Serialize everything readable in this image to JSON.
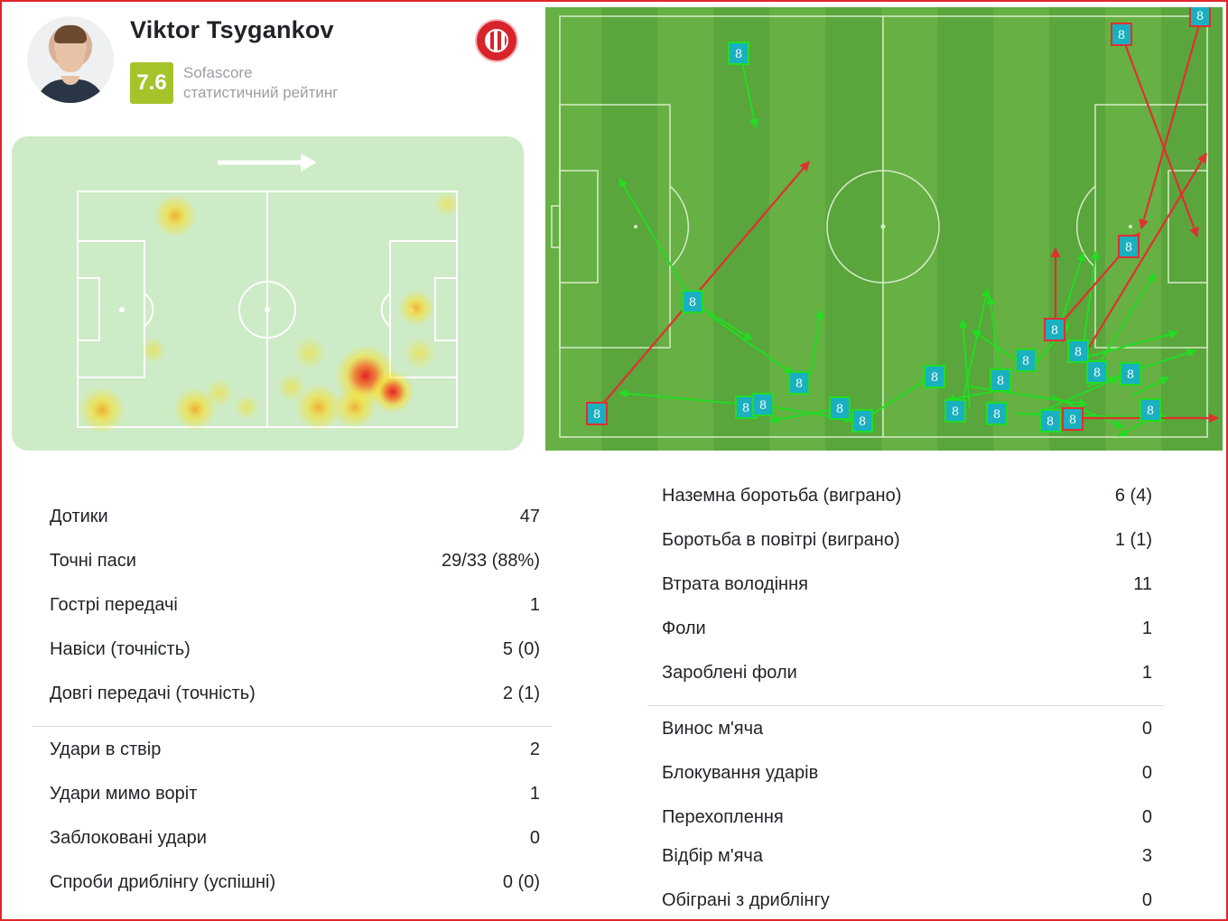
{
  "player": {
    "name": "Viktor Tsygankov",
    "rating": "7.6",
    "rating_source": "Sofascore",
    "rating_caption": "статистичний рейтинг"
  },
  "passmap": {
    "player_number": "8",
    "colors": {
      "successful": "#22dd22",
      "unsuccessful": "#e03030",
      "marker": "#1ab0c0"
    }
  },
  "stats_left": [
    {
      "label": "Дотики",
      "value": "47"
    },
    {
      "label": "Точні паси",
      "value": "29/33 (88%)"
    },
    {
      "label": "Гострі передачі",
      "value": "1"
    },
    {
      "label": "Навіси (точність)",
      "value": "5 (0)"
    },
    {
      "label": "Довгі передачі (точність)",
      "value": "2 (1)"
    },
    {
      "label": "Удари в ствір",
      "value": "2"
    },
    {
      "label": "Удари мимо воріт",
      "value": "1"
    },
    {
      "label": "Заблоковані удари",
      "value": "0"
    },
    {
      "label": "Спроби дриблінгу (успішні)",
      "value": "0 (0)"
    }
  ],
  "stats_right": [
    {
      "label": "Наземна боротьба (виграно)",
      "value": "6 (4)"
    },
    {
      "label": "Боротьба в повітрі (виграно)",
      "value": "1 (1)"
    },
    {
      "label": "Втрата володіння",
      "value": "11"
    },
    {
      "label": "Фоли",
      "value": "1"
    },
    {
      "label": "Зароблені фоли",
      "value": "1"
    },
    {
      "label": "Винос м'яча",
      "value": "0"
    },
    {
      "label": "Блокування ударів",
      "value": "0"
    },
    {
      "label": "Перехоплення",
      "value": "0"
    },
    {
      "label": "Відбір м'яча",
      "value": "3"
    },
    {
      "label": "Обіграні з дриблінгу",
      "value": "0"
    }
  ]
}
